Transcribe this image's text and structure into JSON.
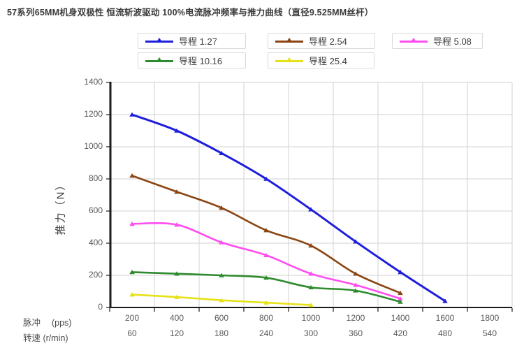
{
  "title": "57系列65MM机身双极性 恒流斩波驱动 100%电流脉冲频率与推力曲线（直径9.525MM丝杆）",
  "chart_data": {
    "type": "line",
    "title": "57系列65MM机身双极性 恒流斩波驱动 100%电流脉冲频率与推力曲线（直径9.525MM丝杆）",
    "legend_position": "top",
    "grid": true,
    "grid_color": "#d9d9d9",
    "axis_color": "#1a1a1a",
    "tick_label_color": "#595959",
    "x_axis": {
      "primary_label": "脉冲　 (pps)",
      "secondary_label": "转速 (r/min)",
      "categories": [
        200,
        400,
        600,
        800,
        1000,
        1200,
        1400,
        1600,
        1800
      ],
      "categories_secondary": [
        60,
        120,
        180,
        240,
        300,
        360,
        420,
        480,
        540
      ]
    },
    "y_axis": {
      "label": "推力（N）",
      "min": 0,
      "max": 1400,
      "step": 200,
      "ticks": [
        0,
        200,
        400,
        600,
        800,
        1000,
        1200,
        1400
      ]
    },
    "series": [
      {
        "name": "导程 1.27",
        "color": "#1e1edc",
        "marker": "triangle",
        "values": [
          1200,
          1100,
          960,
          800,
          610,
          410,
          220,
          40
        ]
      },
      {
        "name": "导程 2.54",
        "color": "#8b4513",
        "marker": "triangle",
        "values": [
          820,
          720,
          620,
          480,
          385,
          210,
          90
        ]
      },
      {
        "name": "导程  5.08",
        "color": "#ff4df0",
        "marker": "triangle",
        "values": [
          520,
          515,
          405,
          325,
          210,
          140,
          55
        ]
      },
      {
        "name": "导程  10.16",
        "color": "#2e8b2e",
        "marker": "triangle",
        "values": [
          220,
          210,
          200,
          185,
          125,
          105,
          35
        ]
      },
      {
        "name": "导程  25.4",
        "color": "#e7e117",
        "marker": "triangle",
        "values": [
          80,
          65,
          45,
          30,
          15
        ]
      }
    ]
  }
}
